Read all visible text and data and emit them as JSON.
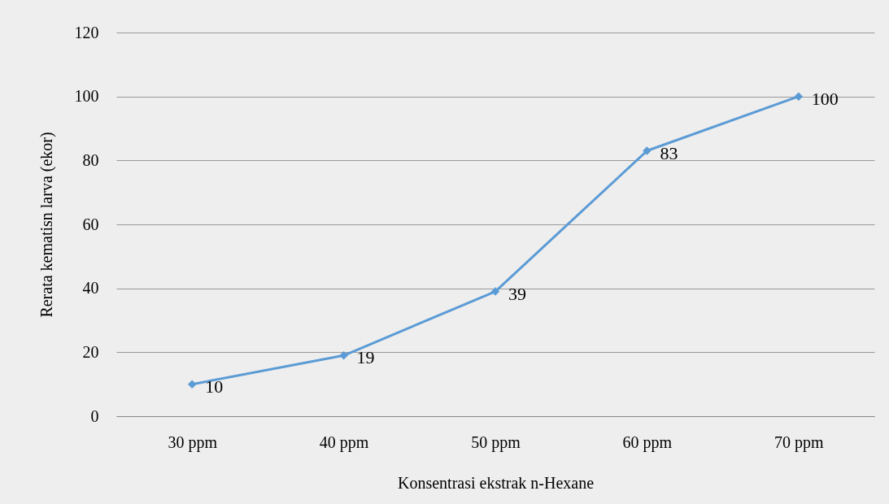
{
  "chart_data": {
    "type": "line",
    "xlabel": "Konsentrasi ekstrak n-Hexane",
    "ylabel": "Rerata kematisn larva (ekor)",
    "categories": [
      "30 ppm",
      "40 ppm",
      "50 ppm",
      "60 ppm",
      "70 ppm"
    ],
    "series": [
      {
        "color": "#5b9bd5",
        "values": [
          10,
          19,
          39,
          83,
          100
        ]
      }
    ],
    "ylim": [
      0,
      120
    ],
    "yticks": [
      0,
      20,
      40,
      60,
      80,
      100,
      120
    ],
    "grid": "y",
    "marker": "diamond",
    "line_style": "solid",
    "data_labels": true,
    "legend": false
  }
}
